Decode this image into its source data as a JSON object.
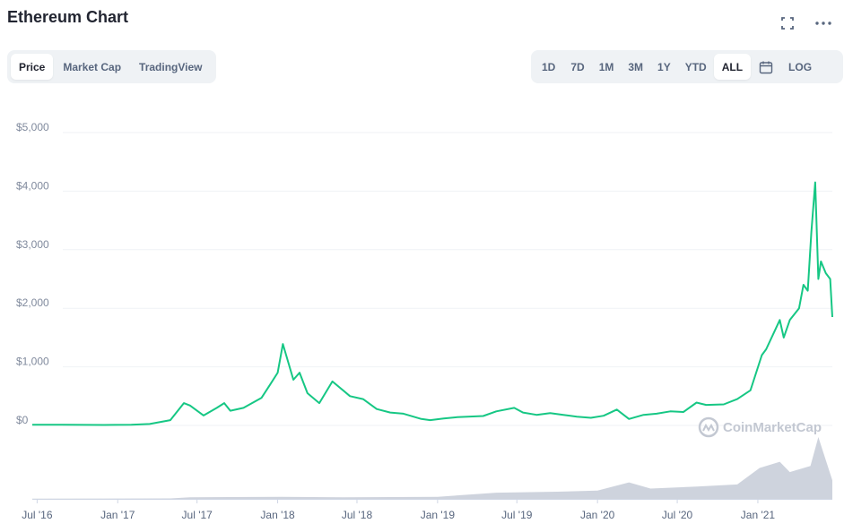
{
  "header": {
    "title": "Ethereum Chart",
    "fullscreen_icon": "fullscreen-icon",
    "more_icon": "more-dots-icon"
  },
  "view_tabs": [
    {
      "label": "Price",
      "active": true
    },
    {
      "label": "Market Cap",
      "active": false
    },
    {
      "label": "TradingView",
      "active": false
    }
  ],
  "range_tabs": [
    {
      "label": "1D",
      "active": false
    },
    {
      "label": "7D",
      "active": false
    },
    {
      "label": "1M",
      "active": false
    },
    {
      "label": "3M",
      "active": false
    },
    {
      "label": "1Y",
      "active": false
    },
    {
      "label": "YTD",
      "active": false
    },
    {
      "label": "ALL",
      "active": true
    }
  ],
  "calendar_icon": "calendar-icon",
  "log_label": "LOG",
  "watermark": "CoinMarketCap",
  "colors": {
    "price_line": "#16c784",
    "volume": "#c6cbd7",
    "grid": "#eff2f5",
    "axis_text": "#808a9d"
  },
  "chart_data": {
    "type": "line",
    "title": "",
    "xlabel": "",
    "ylabel": "",
    "ylim": [
      0,
      5000
    ],
    "yticks": [
      "$0",
      "$1,000",
      "$2,000",
      "$3,000",
      "$4,000",
      "$5,000"
    ],
    "ytick_values": [
      0,
      1000,
      2000,
      3000,
      4000,
      5000
    ],
    "xticks": [
      "Jul '16",
      "Jan '17",
      "Jul '17",
      "Jan '18",
      "Jul '18",
      "Jan '19",
      "Jul '19",
      "Jan '20",
      "Jul '20",
      "Jan '21"
    ],
    "xtick_dates": [
      "2016-07-01",
      "2017-01-01",
      "2017-07-01",
      "2018-01-01",
      "2018-07-01",
      "2019-01-01",
      "2019-07-01",
      "2020-01-01",
      "2020-07-01",
      "2021-01-01"
    ],
    "grid": true,
    "series": [
      {
        "x": [
          "2016-06-20",
          "2016-09-01",
          "2016-12-01",
          "2017-02-01",
          "2017-03-15",
          "2017-05-01",
          "2017-06-01",
          "2017-06-15",
          "2017-07-16",
          "2017-08-15",
          "2017-09-01",
          "2017-09-15",
          "2017-10-15",
          "2017-11-25",
          "2017-12-15",
          "2018-01-01",
          "2018-01-13",
          "2018-02-06",
          "2018-02-20",
          "2018-03-10",
          "2018-04-06",
          "2018-05-06",
          "2018-06-15",
          "2018-07-15",
          "2018-08-15",
          "2018-09-15",
          "2018-10-15",
          "2018-11-25",
          "2018-12-15",
          "2019-01-15",
          "2019-02-15",
          "2019-04-15",
          "2019-05-15",
          "2019-06-25",
          "2019-07-15",
          "2019-08-15",
          "2019-09-15",
          "2019-10-15",
          "2019-11-15",
          "2019-12-17",
          "2020-01-15",
          "2020-02-14",
          "2020-03-13",
          "2020-04-15",
          "2020-05-15",
          "2020-06-15",
          "2020-07-15",
          "2020-08-14",
          "2020-09-05",
          "2020-10-15",
          "2020-11-15",
          "2020-12-15",
          "2021-01-10",
          "2021-01-20",
          "2021-02-20",
          "2021-03-01",
          "2021-03-15",
          "2021-04-05",
          "2021-04-15",
          "2021-04-25",
          "2021-05-03",
          "2021-05-12",
          "2021-05-19",
          "2021-05-25",
          "2021-06-05",
          "2021-06-15",
          "2021-06-20"
        ],
        "values": [
          12,
          12,
          8,
          11,
          25,
          90,
          380,
          340,
          170,
          300,
          380,
          250,
          300,
          470,
          700,
          900,
          1390,
          780,
          900,
          550,
          380,
          750,
          500,
          450,
          280,
          220,
          200,
          110,
          90,
          120,
          140,
          160,
          240,
          300,
          220,
          180,
          210,
          180,
          150,
          130,
          165,
          270,
          110,
          180,
          200,
          240,
          230,
          390,
          350,
          360,
          450,
          600,
          1200,
          1300,
          1800,
          1500,
          1800,
          2000,
          2400,
          2300,
          3300,
          4150,
          2500,
          2800,
          2600,
          2500,
          1850
        ],
        "name": ""
      }
    ],
    "volume": {
      "ylim": [
        0,
        60
      ],
      "x": [
        "2016-06-20",
        "2017-05-01",
        "2017-06-15",
        "2018-01-10",
        "2018-06-01",
        "2019-01-01",
        "2019-05-15",
        "2019-10-01",
        "2020-01-01",
        "2020-03-13",
        "2020-05-01",
        "2020-08-15",
        "2020-11-15",
        "2021-01-05",
        "2021-02-20",
        "2021-03-15",
        "2021-05-01",
        "2021-05-19",
        "2021-06-20"
      ],
      "values": [
        0.3,
        0.4,
        1.5,
        2,
        1.5,
        2,
        6,
        7,
        8,
        16,
        10,
        12,
        14,
        30,
        36,
        26,
        32,
        60,
        18
      ]
    }
  }
}
